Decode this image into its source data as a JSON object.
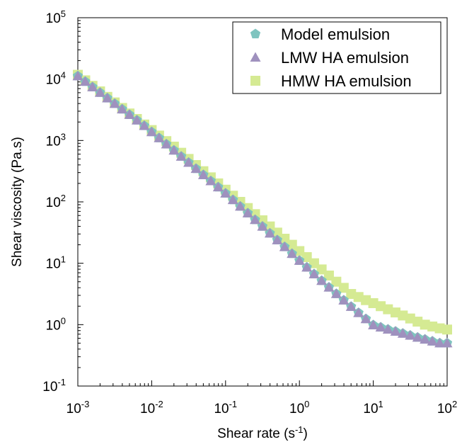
{
  "chart_data": {
    "type": "scatter",
    "title": "",
    "xlabel": "Shear rate (s",
    "xlabel_sup": "-1",
    "xlabel_end": ")",
    "ylabel": "Shear viscosity (Pa.s)",
    "x_scale": "log",
    "y_scale": "log",
    "xlim": [
      0.001,
      100
    ],
    "ylim": [
      0.1,
      100000
    ],
    "x_ticks": [
      {
        "base": "10",
        "exp": "-3",
        "value": 0.001
      },
      {
        "base": "10",
        "exp": "-2",
        "value": 0.01
      },
      {
        "base": "10",
        "exp": "-1",
        "value": 0.1
      },
      {
        "base": "10",
        "exp": "0",
        "value": 1
      },
      {
        "base": "10",
        "exp": "1",
        "value": 10
      },
      {
        "base": "10",
        "exp": "2",
        "value": 100
      }
    ],
    "y_ticks": [
      {
        "base": "10",
        "exp": "-1",
        "value": 0.1
      },
      {
        "base": "10",
        "exp": "0",
        "value": 1
      },
      {
        "base": "10",
        "exp": "1",
        "value": 10
      },
      {
        "base": "10",
        "exp": "2",
        "value": 100
      },
      {
        "base": "10",
        "exp": "3",
        "value": 1000
      },
      {
        "base": "10",
        "exp": "4",
        "value": 10000
      },
      {
        "base": "10",
        "exp": "5",
        "value": 100000
      }
    ],
    "grid": false,
    "legend_position": "top-right",
    "x": [
      0.001,
      0.00126,
      0.00158,
      0.002,
      0.00251,
      0.00316,
      0.00398,
      0.00501,
      0.00631,
      0.00794,
      0.01,
      0.0126,
      0.0158,
      0.02,
      0.0251,
      0.0316,
      0.0398,
      0.0501,
      0.0631,
      0.0794,
      0.1,
      0.126,
      0.158,
      0.2,
      0.251,
      0.316,
      0.398,
      0.501,
      0.631,
      0.794,
      1,
      1.26,
      1.58,
      2,
      2.51,
      3.16,
      3.98,
      5.01,
      6.31,
      7.94,
      10,
      12.6,
      15.8,
      20,
      25.1,
      31.6,
      39.8,
      50.1,
      63.1,
      79.4,
      100
    ],
    "series": [
      {
        "name": "Model emulsion",
        "marker": "pentagon",
        "color": "#7fc4bf",
        "values": [
          11220,
          9120,
          7413,
          6026,
          4898,
          3981,
          3236,
          2630,
          2138,
          1738,
          1380,
          1099,
          871,
          692,
          550,
          437,
          347,
          275,
          219,
          174,
          137.9,
          107.9,
          84.3,
          65.5,
          51.1,
          39.8,
          30.8,
          23.9,
          18.5,
          14.32,
          11.06,
          8.59,
          6.67,
          5.2,
          4.06,
          3.18,
          2.5,
          1.97,
          1.56,
          1.24,
          0.985,
          0.907,
          0.839,
          0.776,
          0.72,
          0.668,
          0.62,
          0.576,
          0.536,
          0.5,
          0.5
        ]
      },
      {
        "name": "LMW  HA emulsion",
        "marker": "triangle",
        "color": "#9f91be",
        "values": [
          11220,
          9120,
          7413,
          6026,
          4898,
          3981,
          3236,
          2630,
          2138,
          1738,
          1380,
          1099,
          871,
          692,
          550,
          437,
          347,
          275,
          219,
          174,
          137.9,
          107.9,
          84.3,
          65.5,
          51.1,
          39.8,
          30.8,
          23.9,
          18.5,
          14.32,
          11.06,
          8.59,
          6.67,
          5.2,
          4.06,
          3.18,
          2.5,
          1.97,
          1.56,
          1.24,
          0.985,
          0.907,
          0.839,
          0.776,
          0.72,
          0.668,
          0.62,
          0.576,
          0.536,
          0.5,
          0.5
        ]
      },
      {
        "name": "HMW HA emulsion",
        "marker": "square",
        "color": "#d5ea93",
        "values": [
          11750,
          9550,
          7762,
          6310,
          5129,
          4169,
          3388,
          2754,
          2239,
          1820,
          1479,
          1202,
          977,
          794,
          631,
          501,
          398,
          316,
          251,
          200,
          158,
          126,
          100,
          79.4,
          63.1,
          50.1,
          39.8,
          31.6,
          25.1,
          20,
          15.8,
          12.6,
          10,
          7.94,
          6.31,
          5.01,
          3.98,
          3.16,
          2.82,
          2.51,
          2.24,
          2,
          1.78,
          1.58,
          1.41,
          1.26,
          1.12,
          1,
          0.933,
          0.871,
          0.832
        ]
      }
    ]
  }
}
